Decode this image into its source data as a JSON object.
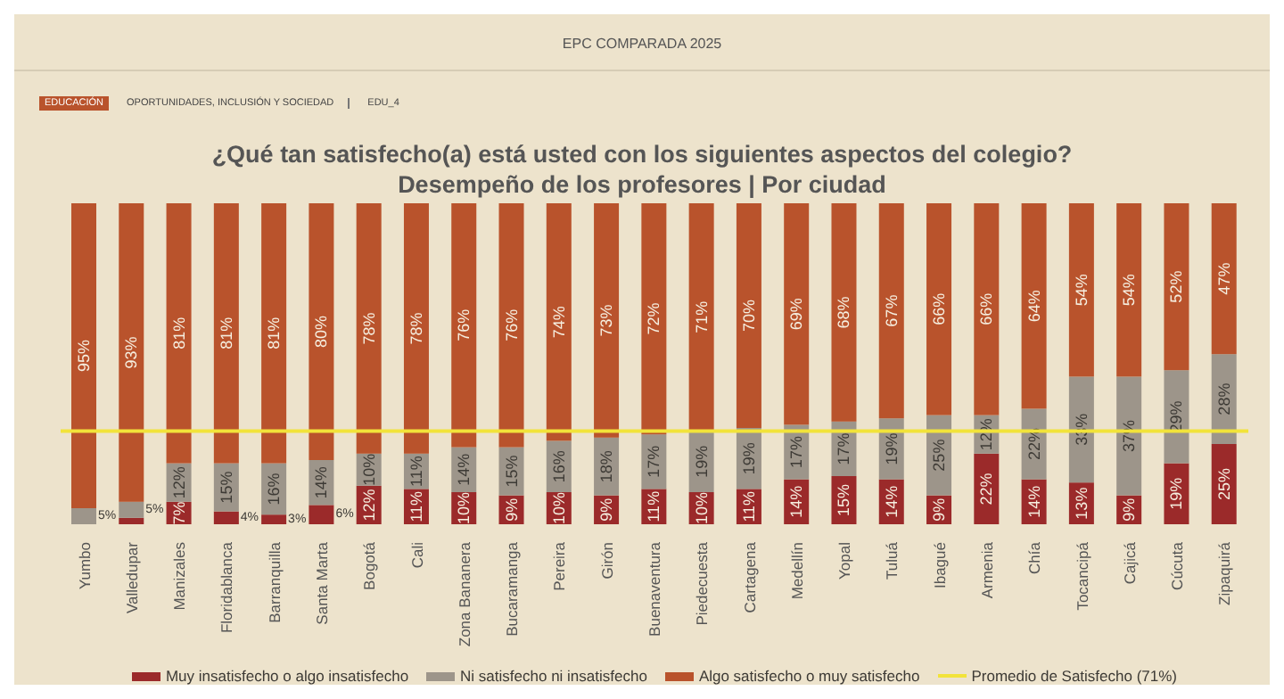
{
  "chart_data": {
    "type": "bar",
    "title": "¿Qué tan satisfecho(a) está usted con los siguientes aspectos del colegio?",
    "subtitle": "Desempeño de los profesores | Por ciudad",
    "annotations": [
      "EPC COMPARADA 2025",
      "EDUCACIÓN",
      "OPORTUNIDADES, INCLUSIÓN Y SOCIEDAD",
      "EDU_4"
    ],
    "categories": [
      "Yumbo",
      "Valledupar",
      "Manizales",
      "Floridablanca",
      "Barranquilla",
      "Santa Marta",
      "Bogotá",
      "Cali",
      "Zona Bananera",
      "Bucaramanga",
      "Pereira",
      "Girón",
      "Buenaventura",
      "Piedecuesta",
      "Cartagena",
      "Medellín",
      "Yopal",
      "Tuluá",
      "Ibagué",
      "Armenia",
      "Chía",
      "Tocancipá",
      "Cajicá",
      "Cúcuta",
      "Zipaquirá"
    ],
    "stacked": true,
    "ylim": [
      0,
      100
    ],
    "grid": false,
    "legend": "bottom",
    "series": [
      {
        "name": "Muy insatisfecho o algo insatisfecho",
        "color": "#9b2a2a",
        "values": [
          0,
          2,
          7,
          4,
          3,
          6,
          12,
          11,
          10,
          9,
          10,
          9,
          11,
          10,
          11,
          14,
          15,
          14,
          9,
          22,
          14,
          13,
          9,
          19,
          25
        ],
        "value_labels": [
          null,
          null,
          "7%",
          "4%",
          "3%",
          "6%",
          "12%",
          "11%",
          "10%",
          "9%",
          "10%",
          "9%",
          "11%",
          "10%",
          "11%",
          "14%",
          "15%",
          "14%",
          "9%",
          "22%",
          "14%",
          "13%",
          "9%",
          "19%",
          "25%"
        ]
      },
      {
        "name": "Ni satisfecho ni insatisfecho",
        "color": "#9d958a",
        "values": [
          5,
          5,
          12,
          15,
          16,
          14,
          10,
          11,
          14,
          15,
          16,
          18,
          17,
          19,
          19,
          17,
          17,
          19,
          25,
          12,
          22,
          33,
          37,
          29,
          28
        ],
        "value_labels": [
          "5%",
          "5%",
          "12%",
          "15%",
          "16%",
          "14%",
          "10%",
          "11%",
          "14%",
          "15%",
          "16%",
          "18%",
          "17%",
          "19%",
          "19%",
          "17%",
          "17%",
          "19%",
          "25%",
          "12%",
          "22%",
          "33%",
          "37%",
          "29%",
          "28%"
        ]
      },
      {
        "name": "Algo satisfecho o muy satisfecho",
        "color": "#b9532c",
        "values": [
          95,
          93,
          81,
          81,
          81,
          80,
          78,
          78,
          76,
          76,
          74,
          73,
          72,
          71,
          70,
          69,
          68,
          67,
          66,
          66,
          64,
          54,
          54,
          52,
          47
        ],
        "value_labels": [
          "95%",
          "93%",
          "81%",
          "81%",
          "81%",
          "80%",
          "78%",
          "78%",
          "76%",
          "76%",
          "74%",
          "73%",
          "72%",
          "71%",
          "70%",
          "69%",
          "68%",
          "67%",
          "66%",
          "66%",
          "64%",
          "54%",
          "54%",
          "52%",
          "47%"
        ]
      }
    ],
    "ref_lines": [
      {
        "axis": "y",
        "value": 29,
        "label": "Promedio de Satisfecho (71%)",
        "color": "#f2e33a"
      }
    ]
  }
}
